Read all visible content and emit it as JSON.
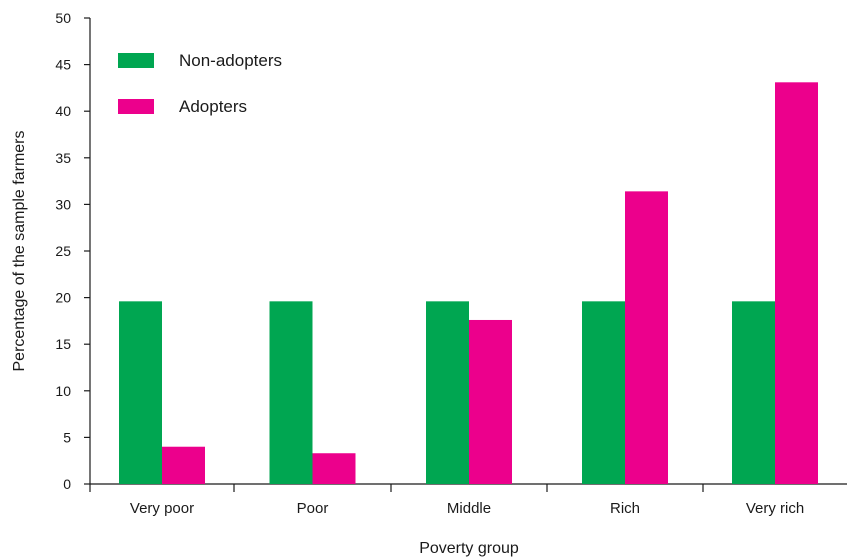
{
  "chart_data": {
    "type": "bar",
    "title": "",
    "xlabel": "Poverty group",
    "ylabel": "Percentage of the sample farmers",
    "categories": [
      "Very poor",
      "Poor",
      "Middle",
      "Rich",
      "Very rich"
    ],
    "series": [
      {
        "name": "Non-adopters",
        "values": [
          19.6,
          19.6,
          19.6,
          19.6,
          19.6
        ],
        "color": "#00a651"
      },
      {
        "name": "Adopters",
        "values": [
          4.0,
          3.3,
          17.6,
          31.4,
          43.1
        ],
        "color": "#ec008c"
      }
    ],
    "ylim": [
      0,
      50
    ],
    "yticks": [
      "0",
      "5",
      "10",
      "15",
      "20",
      "25",
      "30",
      "35",
      "40",
      "45",
      "50"
    ],
    "grid": false,
    "legend_position": "top-left"
  }
}
